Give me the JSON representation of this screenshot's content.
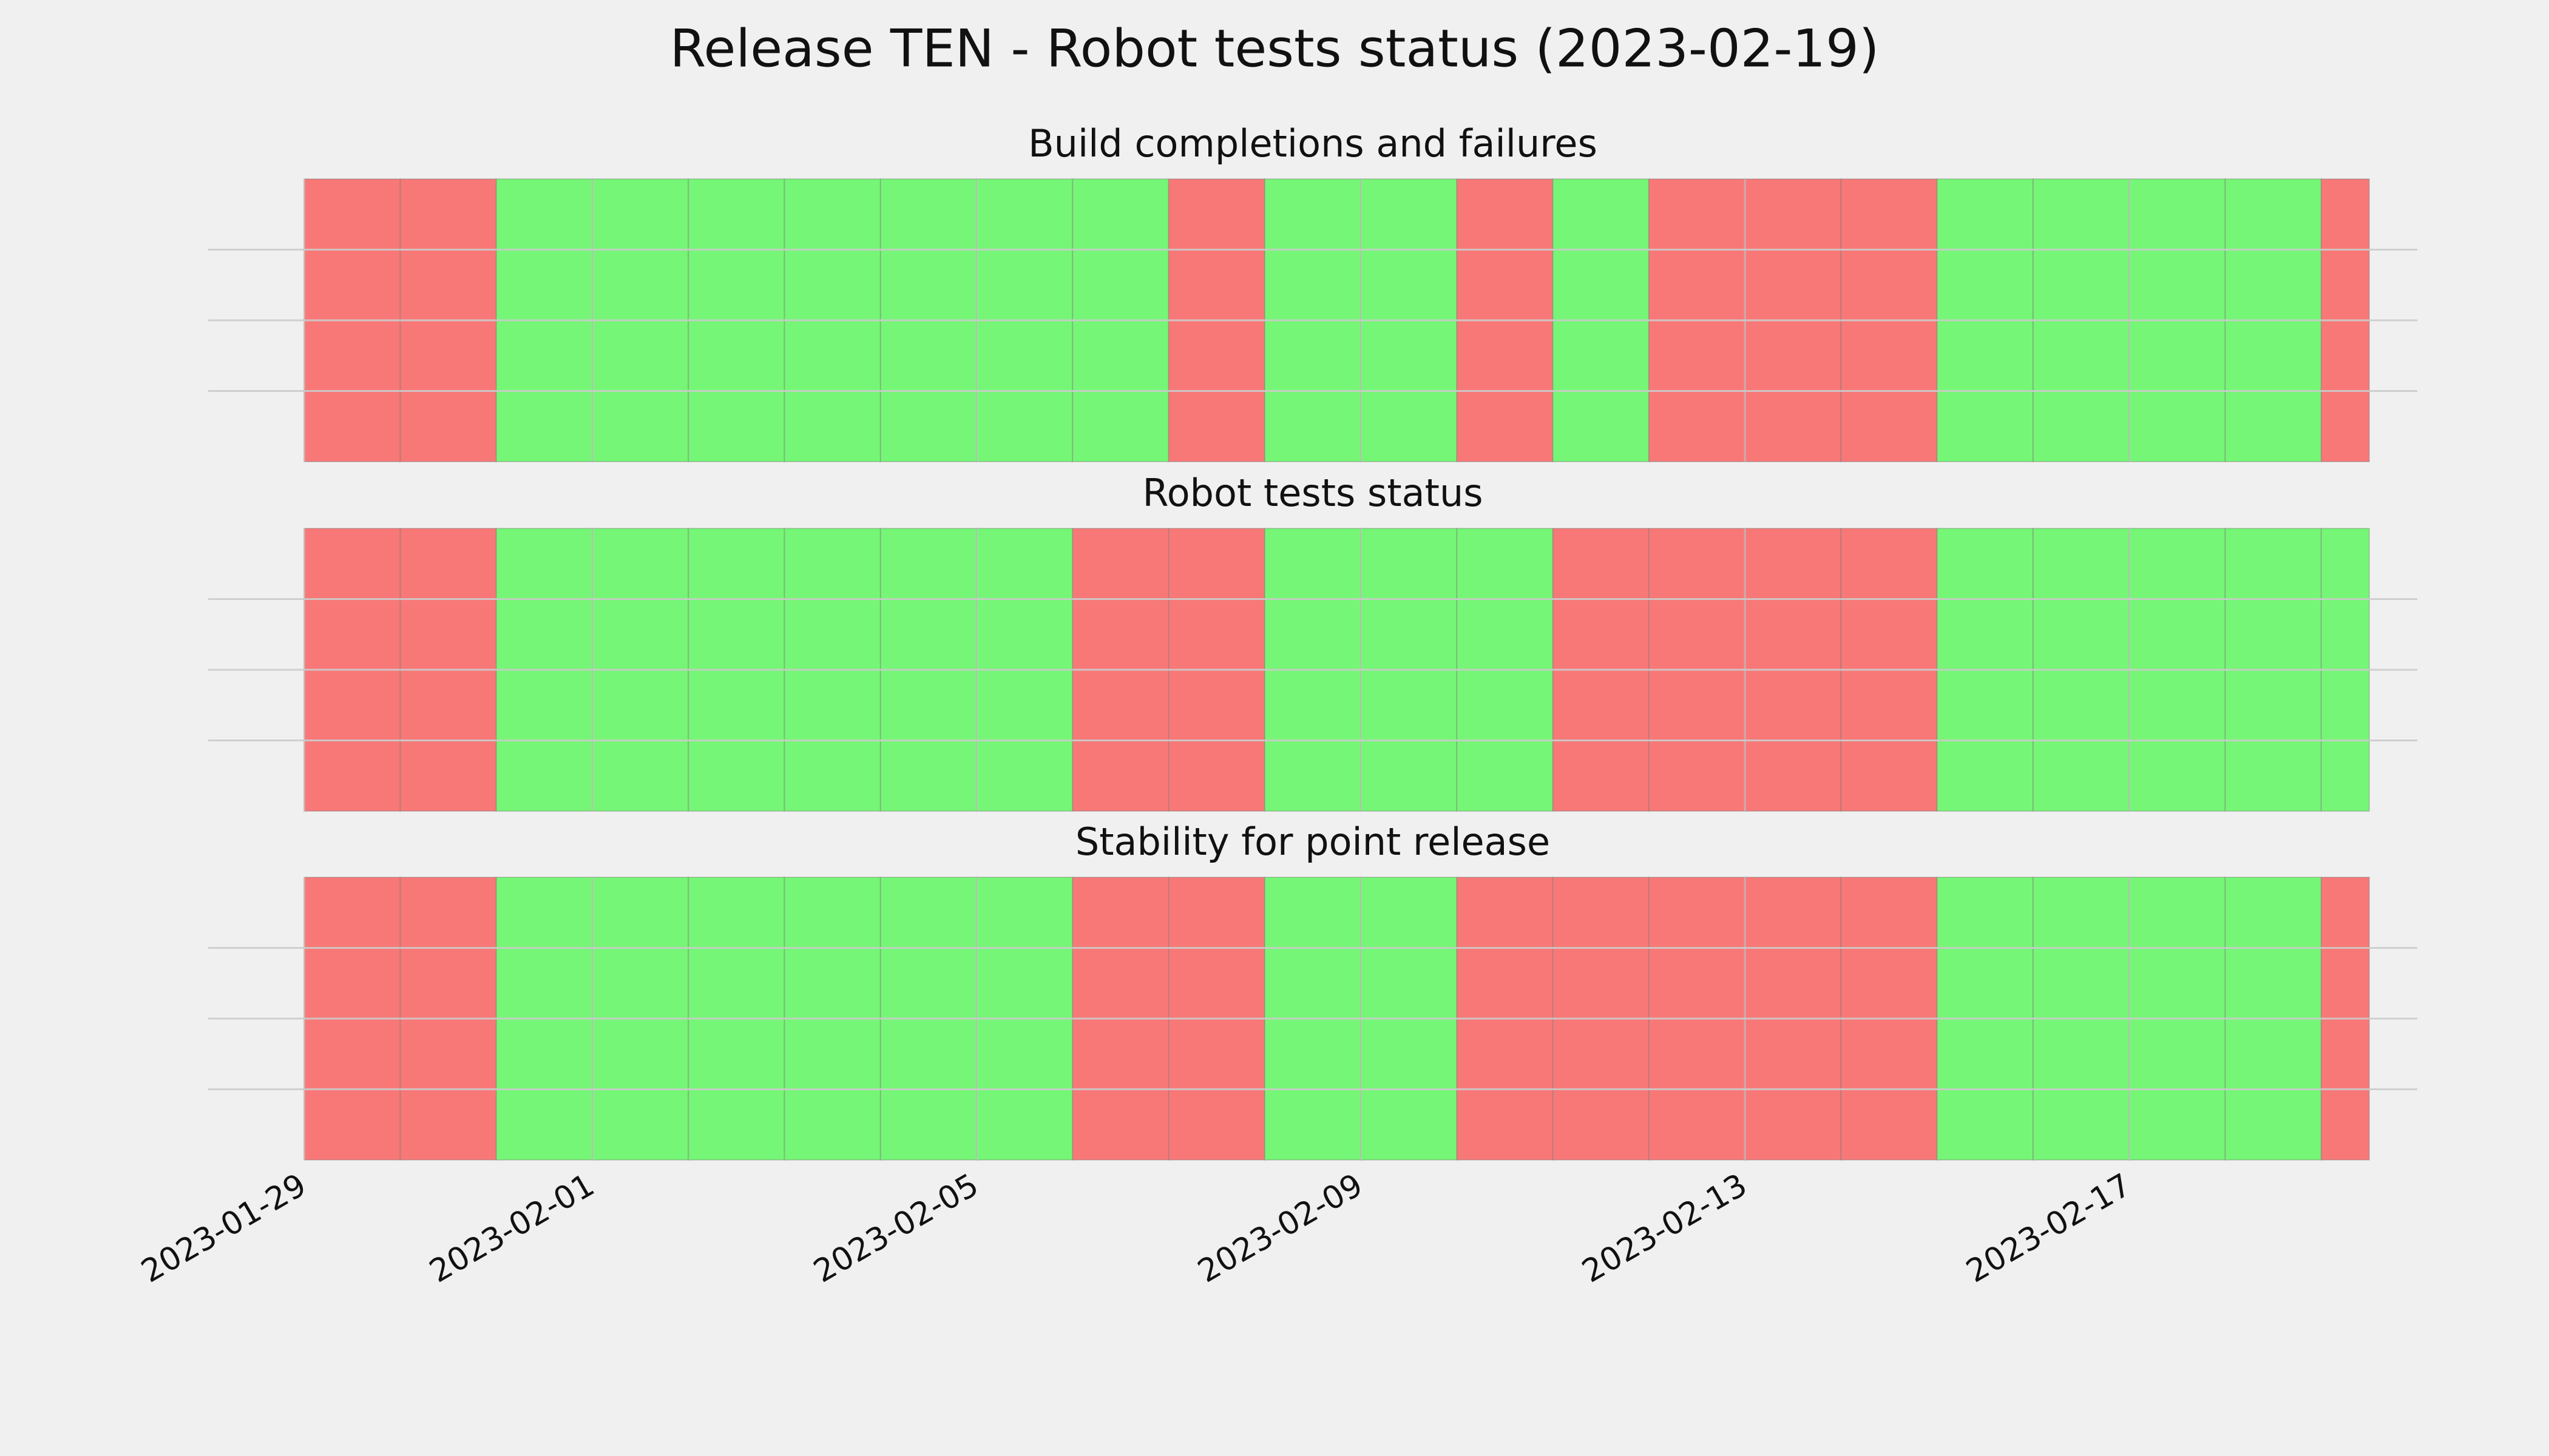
{
  "title": "Release TEN - Robot tests status (2023-02-19)",
  "chart_data": [
    {
      "type": "timeline",
      "title": "Build completions and failures",
      "x": [
        "2023-01-29",
        "2023-01-30",
        "2023-01-31",
        "2023-02-01",
        "2023-02-02",
        "2023-02-03",
        "2023-02-04",
        "2023-02-05",
        "2023-02-06",
        "2023-02-07",
        "2023-02-08",
        "2023-02-09",
        "2023-02-10",
        "2023-02-11",
        "2023-02-12",
        "2023-02-13",
        "2023-02-14",
        "2023-02-15",
        "2023-02-16",
        "2023-02-17",
        "2023-02-18",
        "2023-02-19"
      ],
      "values": [
        0,
        0,
        1,
        1,
        1,
        1,
        1,
        1,
        1,
        0,
        1,
        1,
        0,
        1,
        0,
        0,
        0,
        1,
        1,
        1,
        1,
        0
      ],
      "status_colors": [
        "#f87878",
        "#76f676"
      ],
      "xlim": [
        "2023-01-28",
        "2023-02-20"
      ],
      "xticks": [
        "2023-01-29",
        "2023-02-01",
        "2023-02-05",
        "2023-02-09",
        "2023-02-13",
        "2023-02-17"
      ],
      "ylim": [
        0,
        1
      ],
      "yticks": [
        0.25,
        0.5,
        0.75
      ],
      "grid": true
    },
    {
      "type": "timeline",
      "title": "Robot tests status",
      "x": [
        "2023-01-29",
        "2023-01-30",
        "2023-01-31",
        "2023-02-01",
        "2023-02-02",
        "2023-02-03",
        "2023-02-04",
        "2023-02-05",
        "2023-02-06",
        "2023-02-07",
        "2023-02-08",
        "2023-02-09",
        "2023-02-10",
        "2023-02-11",
        "2023-02-12",
        "2023-02-13",
        "2023-02-14",
        "2023-02-15",
        "2023-02-16",
        "2023-02-17",
        "2023-02-18",
        "2023-02-19"
      ],
      "values": [
        0,
        0,
        1,
        1,
        1,
        1,
        1,
        1,
        0,
        0,
        1,
        1,
        1,
        0,
        0,
        0,
        0,
        1,
        1,
        1,
        1,
        1
      ],
      "status_colors": [
        "#f87878",
        "#76f676"
      ],
      "xlim": [
        "2023-01-28",
        "2023-02-20"
      ],
      "xticks": [
        "2023-01-29",
        "2023-02-01",
        "2023-02-05",
        "2023-02-09",
        "2023-02-13",
        "2023-02-17"
      ],
      "ylim": [
        0,
        1
      ],
      "yticks": [
        0.25,
        0.5,
        0.75
      ],
      "grid": true
    },
    {
      "type": "timeline",
      "title": "Stability for point release",
      "x": [
        "2023-01-29",
        "2023-01-30",
        "2023-01-31",
        "2023-02-01",
        "2023-02-02",
        "2023-02-03",
        "2023-02-04",
        "2023-02-05",
        "2023-02-06",
        "2023-02-07",
        "2023-02-08",
        "2023-02-09",
        "2023-02-10",
        "2023-02-11",
        "2023-02-12",
        "2023-02-13",
        "2023-02-14",
        "2023-02-15",
        "2023-02-16",
        "2023-02-17",
        "2023-02-18",
        "2023-02-19"
      ],
      "values": [
        0,
        0,
        1,
        1,
        1,
        1,
        1,
        1,
        0,
        0,
        1,
        1,
        0,
        0,
        0,
        0,
        0,
        1,
        1,
        1,
        1,
        0
      ],
      "status_colors": [
        "#f87878",
        "#76f676"
      ],
      "xlim": [
        "2023-01-28",
        "2023-02-20"
      ],
      "xticks": [
        "2023-01-29",
        "2023-02-01",
        "2023-02-05",
        "2023-02-09",
        "2023-02-13",
        "2023-02-17"
      ],
      "ylim": [
        0,
        1
      ],
      "yticks": [
        0.25,
        0.5,
        0.75
      ],
      "grid": true
    }
  ]
}
